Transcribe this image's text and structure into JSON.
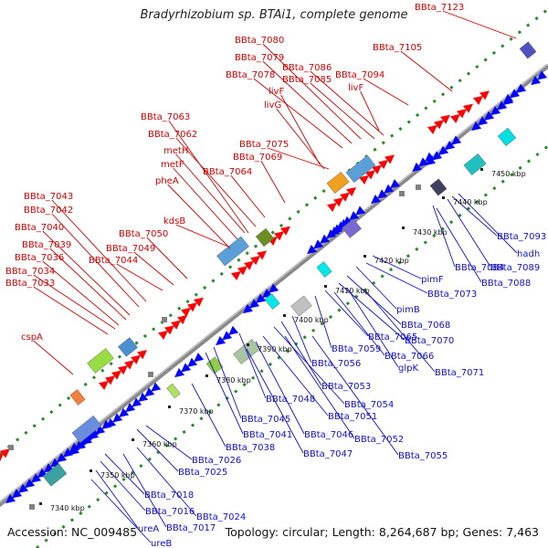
{
  "title": "Bradyrhizobium sp. BTAi1, complete genome",
  "footer": {
    "accession": "Accession: NC_009485",
    "summary": "Topology: circular; Length: 8,264,687 bp; Genes: 7,463"
  },
  "colors": {
    "forward_label": "#d00000",
    "reverse_label": "#1010c8",
    "forward_gene": "#ff0000",
    "reverse_gene": "#0000ff",
    "axis": "#888888",
    "dots": "#2a8a2a"
  },
  "ticks": [
    "7340 kbp",
    "7350 kbp",
    "7360 kbp",
    "7370 kbp",
    "7380 kbp",
    "7390 kbp",
    "7400 kbp",
    "7410 kbp",
    "7420 kbp",
    "7430 kbp",
    "7440 kbp",
    "7450 kbp"
  ],
  "forward_labels": [
    "BBta_7123",
    "BBta_7105",
    "BBta_7080",
    "BBta_7079",
    "BBta_7078",
    "BBta_7086",
    "BBta_7085",
    "BBta_7094",
    "livF",
    "livF",
    "livG",
    "BBta_7063",
    "BBta_7062",
    "metH",
    "metF",
    "pheA",
    "BBta_7075",
    "BBta_7069",
    "BBta_7064",
    "kdsB",
    "BBta_7043",
    "BBta_7042",
    "BBta_7040",
    "BBta_7039",
    "BBta_7036",
    "BBta_7034",
    "BBta_7033",
    "BBta_7050",
    "BBta_7049",
    "BBta_7044",
    "cspA"
  ],
  "reverse_labels": [
    "BBta_7093",
    "hadh",
    "BBta_7089",
    "BBta_7084",
    "BBta_7088",
    "pimF",
    "BBta_7073",
    "pimB",
    "BBta_7068",
    "BBta_7070",
    "BBta_7065",
    "BBta_7059",
    "BBta_7066",
    "glpK",
    "BBta_7071",
    "BBta_7056",
    "BBta_7053",
    "BBta_7054",
    "BBta_7048",
    "BBta_7051",
    "BBta_7045",
    "BBta_7046",
    "BBta_7052",
    "BBta_7041",
    "BBta_7047",
    "BBta_7055",
    "BBta_7038",
    "BBta_7026",
    "BBta_7025",
    "BBta_7018",
    "BBta_7016",
    "BBta_7024",
    "ureA",
    "BBta_7017",
    "ureB"
  ]
}
